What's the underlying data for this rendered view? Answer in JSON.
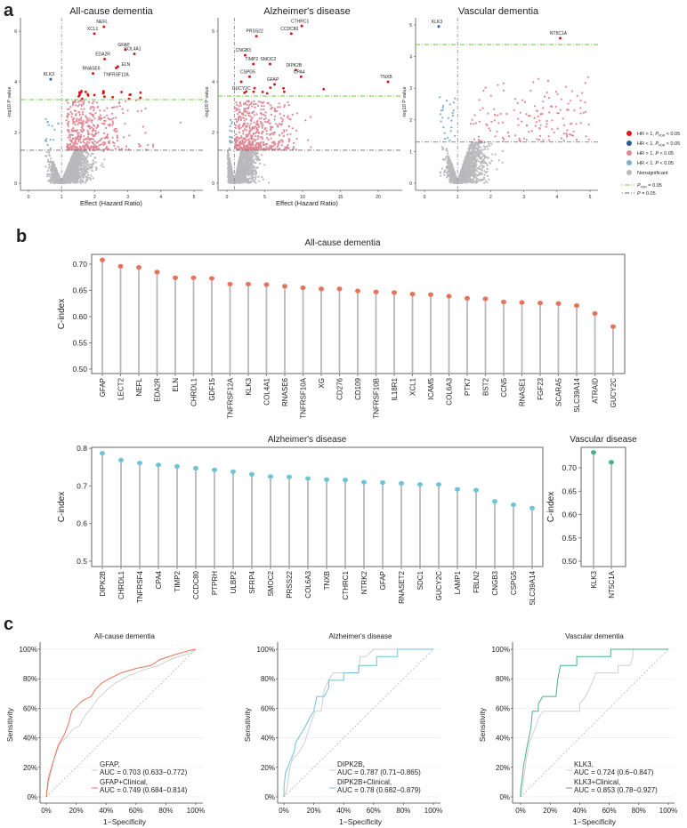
{
  "panel_labels": {
    "a": "a",
    "b": "b",
    "c": "c"
  },
  "colors": {
    "hr_gt1_fdr": "#d7191c",
    "hr_lt1_fdr": "#2b5c9a",
    "hr_gt1_p": "#e08896",
    "hr_lt1_p": "#7eb0cc",
    "nonsig": "#b9b9bb",
    "fdr_line": "#66cc33",
    "p_line": "#666666",
    "allcause": "#e8735a",
    "alzheimer": "#6ec3d6",
    "vascular": "#4daf8a",
    "stem": "#b8b8bc",
    "roc_base": "#cfcfcf"
  },
  "volcano_legend": {
    "items": [
      {
        "pre": "HR > 1, ",
        "p": "P",
        "sub": "FDR",
        "post": " < 0.05",
        "color_key": "hr_gt1_fdr"
      },
      {
        "pre": "HR < 1, ",
        "p": "P",
        "sub": "FDR",
        "post": " < 0.05",
        "color_key": "hr_lt1_fdr"
      },
      {
        "pre": "HR > 1, ",
        "p": "P",
        "sub": "",
        "post": " < 0.05",
        "color_key": "hr_gt1_p"
      },
      {
        "pre": "HR < 1, ",
        "p": "P",
        "sub": "",
        "post": " < 0.05",
        "color_key": "hr_lt1_p"
      },
      {
        "pre": "Nonsignificant",
        "p": "",
        "sub": "",
        "post": "",
        "color_key": "nonsig"
      }
    ],
    "lines": [
      {
        "p": "P",
        "sub": "FDR",
        "post": " = 0.05",
        "color_key": "fdr_line"
      },
      {
        "p": "P",
        "sub": "",
        "post": " = 0.05",
        "color_key": "p_line"
      }
    ]
  },
  "chart_data": [
    {
      "type": "scatter",
      "panel": "a",
      "title": "All-cause dementia",
      "xlabel": "Effect (Hazard Ratio)",
      "ylabel": "-log10 P value",
      "xticks": [
        "0",
        "1",
        "2",
        "3",
        "4",
        "5"
      ],
      "yticks": [
        "0",
        "2",
        "4",
        "6"
      ],
      "hr_reference": 1,
      "fdr_threshold_y": 3.3,
      "p_threshold_y": 1.3,
      "labeled_points": [
        {
          "label": "NEFL",
          "x": 2.28,
          "y": 6.17,
          "group": "hr_gt1_fdr"
        },
        {
          "label": "XCL1",
          "x": 1.99,
          "y": 5.9,
          "group": "hr_gt1_fdr"
        },
        {
          "label": "GFAP",
          "x": 2.93,
          "y": 5.27,
          "group": "hr_gt1_fdr"
        },
        {
          "label": "EDA2R",
          "x": 2.3,
          "y": 4.9,
          "group": "hr_gt1_fdr"
        },
        {
          "label": "COL4A1",
          "x": 3.2,
          "y": 5.1,
          "group": "hr_gt1_fdr"
        },
        {
          "label": "ELN",
          "x": 2.7,
          "y": 4.6,
          "group": "hr_gt1_fdr"
        },
        {
          "label": "RNASE6",
          "x": 1.95,
          "y": 4.33,
          "group": "hr_gt1_fdr"
        },
        {
          "label": "TNFRSF12A",
          "x": 2.65,
          "y": 4.55,
          "group": "hr_gt1_fdr"
        },
        {
          "label": "KLK3",
          "x": 0.67,
          "y": 4.1,
          "group": "hr_lt1_fdr"
        }
      ]
    },
    {
      "type": "scatter",
      "panel": "a",
      "title": "Alzheimer's disease",
      "xlabel": "Effect (Hazard Ratio)",
      "ylabel": "-log10 P value",
      "xticks": [
        "0",
        "5",
        "10",
        "15",
        "20"
      ],
      "yticks": [
        "0",
        "2",
        "4",
        "6"
      ],
      "hr_reference": 1,
      "fdr_threshold_y": 3.44,
      "p_threshold_y": 1.3,
      "labeled_points": [
        {
          "label": "CTHRC1",
          "x": 9.9,
          "y": 6.2,
          "group": "hr_gt1_fdr"
        },
        {
          "label": "PRSS22",
          "x": 3.9,
          "y": 5.8,
          "group": "hr_gt1_fdr"
        },
        {
          "label": "CCDC80",
          "x": 8.5,
          "y": 5.9,
          "group": "hr_gt1_fdr"
        },
        {
          "label": "CNGB3",
          "x": 2.4,
          "y": 5.05,
          "group": "hr_gt1_fdr"
        },
        {
          "label": "TIMP2",
          "x": 3.5,
          "y": 4.7,
          "group": "hr_gt1_fdr"
        },
        {
          "label": "SMOC2",
          "x": 5.7,
          "y": 4.7,
          "group": "hr_gt1_fdr"
        },
        {
          "label": "DIPK2B",
          "x": 9.1,
          "y": 4.46,
          "group": "hr_gt1_fdr"
        },
        {
          "label": "CSPG5",
          "x": 3.0,
          "y": 4.2,
          "group": "hr_gt1_fdr"
        },
        {
          "label": "CPA4",
          "x": 9.8,
          "y": 4.2,
          "group": "hr_gt1_fdr"
        },
        {
          "label": "GFAP",
          "x": 6.3,
          "y": 3.9,
          "group": "hr_gt1_fdr"
        },
        {
          "label": "GUCY2C",
          "x": 1.9,
          "y": 4.0,
          "group": "hr_gt1_fdr"
        },
        {
          "label": "TNXB",
          "x": 21.3,
          "y": 4.0,
          "group": "hr_gt1_fdr"
        }
      ]
    },
    {
      "type": "scatter",
      "panel": "a",
      "title": "Vascular dementia",
      "xlabel": "",
      "ylabel": "-log10 P value",
      "xticks": [
        "0",
        "1",
        "2",
        "3",
        "4",
        "5"
      ],
      "yticks": [
        "0",
        "1",
        "2",
        "3",
        "4",
        "5"
      ],
      "hr_reference": 1,
      "fdr_threshold_y": 4.38,
      "p_threshold_y": 1.3,
      "labeled_points": [
        {
          "label": "KLK3",
          "x": 0.43,
          "y": 4.95,
          "group": "hr_lt1_fdr"
        },
        {
          "label": "NT5C1A",
          "x": 4.1,
          "y": 4.58,
          "group": "hr_gt1_fdr"
        }
      ]
    },
    {
      "type": "lollipop",
      "panel": "b",
      "title": "All-cause dementia",
      "ylabel": "C-index",
      "ylim": [
        0.5,
        0.71
      ],
      "yticks": [
        "0.50",
        "0.55",
        "0.60",
        "0.65",
        "0.70"
      ],
      "categories": [
        "GFAP",
        "LECT2",
        "NEFL",
        "EDA2R",
        "ELN",
        "CHRDL1",
        "GDF15",
        "TNFRSF12A",
        "KLK3",
        "COL4A1",
        "RNASE6",
        "TNFRSF10A",
        "XG",
        "CD276",
        "CD109",
        "TNFRSF10B",
        "IL18R1",
        "XCL1",
        "ICAM5",
        "COL6A3",
        "PTK7",
        "BST2",
        "CCN5",
        "RNASE1",
        "FGF23",
        "SCARA5",
        "SLC39A14",
        "ATRAID",
        "GUCY2C"
      ],
      "values": [
        0.708,
        0.696,
        0.694,
        0.685,
        0.674,
        0.674,
        0.673,
        0.662,
        0.662,
        0.661,
        0.658,
        0.655,
        0.653,
        0.653,
        0.649,
        0.647,
        0.646,
        0.643,
        0.642,
        0.639,
        0.635,
        0.634,
        0.628,
        0.627,
        0.626,
        0.625,
        0.621,
        0.606,
        0.581
      ]
    },
    {
      "type": "lollipop",
      "panel": "b",
      "title": "Alzheimer's disease",
      "ylabel": "C-index",
      "ylim": [
        0.5,
        0.8
      ],
      "yticks": [
        "0.5",
        "0.6",
        "0.7",
        "0.8"
      ],
      "categories": [
        "DIPK2B",
        "CHRDL1",
        "TNFRSF4",
        "CPA4",
        "TIMP2",
        "CCDC80",
        "PTPRH",
        "ULBP2",
        "SFRP4",
        "SMOC2",
        "PRSS22",
        "COL6A3",
        "TNXB",
        "CTHRC1",
        "NTRK2",
        "GFAP",
        "RNASET2",
        "SDC1",
        "GUCY2C",
        "LAMP1",
        "FBLN2",
        "CNGB3",
        "CSPG5",
        "SLC39A14"
      ],
      "values": [
        0.787,
        0.769,
        0.761,
        0.756,
        0.752,
        0.747,
        0.743,
        0.738,
        0.731,
        0.725,
        0.724,
        0.72,
        0.717,
        0.716,
        0.71,
        0.709,
        0.707,
        0.704,
        0.704,
        0.691,
        0.689,
        0.659,
        0.65,
        0.641
      ]
    },
    {
      "type": "lollipop",
      "panel": "b",
      "title": "Vascular disease",
      "ylabel": "C-index",
      "ylim": [
        0.5,
        0.74
      ],
      "yticks": [
        "0.50",
        "0.55",
        "0.60",
        "0.65",
        "0.70"
      ],
      "categories": [
        "KLK3",
        "NT5C1A"
      ],
      "values": [
        0.733,
        0.712
      ]
    },
    {
      "type": "line",
      "panel": "c",
      "title": "All-cause dementia",
      "xlabel": "1−Specificity",
      "ylabel": "Sensitivity",
      "xticks": [
        "0%",
        "20%",
        "40%",
        "60%",
        "80%",
        "100%"
      ],
      "yticks": [
        "0%",
        "20%",
        "40%",
        "60%",
        "80%",
        "100%"
      ],
      "series": [
        {
          "name": "GFAP,",
          "auc": "AUC = 0.703 (0.633−0.772)",
          "color_key": "roc_base",
          "x": [
            0,
            0.02,
            0.05,
            0.09,
            0.13,
            0.18,
            0.22,
            0.26,
            0.3,
            0.34,
            0.4,
            0.46,
            0.55,
            0.65,
            0.75,
            0.85,
            0.95,
            1
          ],
          "y": [
            0,
            0.12,
            0.25,
            0.36,
            0.4,
            0.46,
            0.48,
            0.55,
            0.6,
            0.66,
            0.72,
            0.77,
            0.82,
            0.86,
            0.89,
            0.94,
            0.97,
            1
          ]
        },
        {
          "name": "GFAP+Clinical,",
          "auc": "AUC = 0.749 (0.684−0.814)",
          "color_key": "allcause",
          "x": [
            0,
            0.01,
            0.02,
            0.05,
            0.08,
            0.12,
            0.15,
            0.17,
            0.2,
            0.24,
            0.3,
            0.33,
            0.37,
            0.42,
            0.5,
            0.6,
            0.7,
            0.76,
            0.85,
            0.95,
            1
          ],
          "y": [
            0,
            0.1,
            0.15,
            0.25,
            0.35,
            0.42,
            0.5,
            0.58,
            0.61,
            0.65,
            0.68,
            0.73,
            0.77,
            0.8,
            0.84,
            0.87,
            0.89,
            0.93,
            0.96,
            0.99,
            1
          ]
        }
      ]
    },
    {
      "type": "line",
      "panel": "c",
      "title": "Alzheimer's disease",
      "xlabel": "1−Specificity",
      "ylabel": "Sensitivity",
      "xticks": [
        "0%",
        "20%",
        "40%",
        "60%",
        "80%",
        "100%"
      ],
      "yticks": [
        "0%",
        "20%",
        "40%",
        "60%",
        "80%",
        "100%"
      ],
      "series": [
        {
          "name": "DIPK2B,",
          "auc": "AUC = 0.787 (0.71−0.865)",
          "color_key": "roc_base",
          "x": [
            0,
            0.02,
            0.04,
            0.06,
            0.1,
            0.14,
            0.17,
            0.21,
            0.25,
            0.27,
            0.3,
            0.33,
            0.4,
            0.5,
            0.51,
            0.55,
            0.6,
            1
          ],
          "y": [
            0,
            0.05,
            0.2,
            0.26,
            0.3,
            0.37,
            0.47,
            0.58,
            0.58,
            0.73,
            0.79,
            0.84,
            0.84,
            0.84,
            0.95,
            0.95,
            1,
            1
          ]
        },
        {
          "name": "DIPK2B+Clinical,",
          "auc": "AUC = 0.78 (0.682−0.879)",
          "color_key": "alzheimer",
          "x": [
            0,
            0,
            0.01,
            0.03,
            0.05,
            0.07,
            0.08,
            0.11,
            0.14,
            0.17,
            0.2,
            0.21,
            0.22,
            0.27,
            0.3,
            0.3,
            0.4,
            0.4,
            0.5,
            0.5,
            0.62,
            0.62,
            0.76,
            0.76,
            1
          ],
          "y": [
            0,
            0.05,
            0.16,
            0.21,
            0.26,
            0.31,
            0.37,
            0.42,
            0.47,
            0.53,
            0.58,
            0.63,
            0.68,
            0.68,
            0.74,
            0.79,
            0.79,
            0.84,
            0.84,
            0.89,
            0.89,
            0.95,
            0.95,
            1,
            1
          ]
        }
      ]
    },
    {
      "type": "line",
      "panel": "c",
      "title": "Vascular dementia",
      "xlabel": "1−Specificity",
      "ylabel": "Sensitivity",
      "xticks": [
        "0%",
        "20%",
        "40%",
        "60%",
        "80%",
        "100%"
      ],
      "yticks": [
        "0%",
        "20%",
        "40%",
        "60%",
        "80%",
        "100%"
      ],
      "series": [
        {
          "name": "KLK3,",
          "auc": "AUC = 0.724 (0.6−0.847)",
          "color_key": "roc_base",
          "x": [
            0,
            0.02,
            0.04,
            0.06,
            0.08,
            0.1,
            0.12,
            0.15,
            0.4,
            0.4,
            0.44,
            0.47,
            0.49,
            0.51,
            0.66,
            0.66,
            0.74,
            0.76,
            0.76,
            1
          ],
          "y": [
            0,
            0.11,
            0.26,
            0.37,
            0.42,
            0.47,
            0.53,
            0.58,
            0.58,
            0.63,
            0.68,
            0.74,
            0.79,
            0.84,
            0.84,
            0.89,
            0.89,
            0.95,
            1,
            1
          ]
        },
        {
          "name": "KLK3+Clinical,",
          "auc": "AUC = 0.853 (0.78−0.927)",
          "color_key": "vascular",
          "x": [
            0,
            0,
            0.01,
            0.02,
            0.03,
            0.04,
            0.05,
            0.06,
            0.07,
            0.08,
            0.12,
            0.12,
            0.15,
            0.24,
            0.25,
            0.27,
            0.38,
            0.38,
            0.61,
            0.61,
            1
          ],
          "y": [
            0,
            0.05,
            0.11,
            0.21,
            0.26,
            0.32,
            0.37,
            0.42,
            0.47,
            0.58,
            0.58,
            0.63,
            0.68,
            0.68,
            0.79,
            0.89,
            0.89,
            0.95,
            0.95,
            1,
            1
          ]
        }
      ]
    }
  ]
}
